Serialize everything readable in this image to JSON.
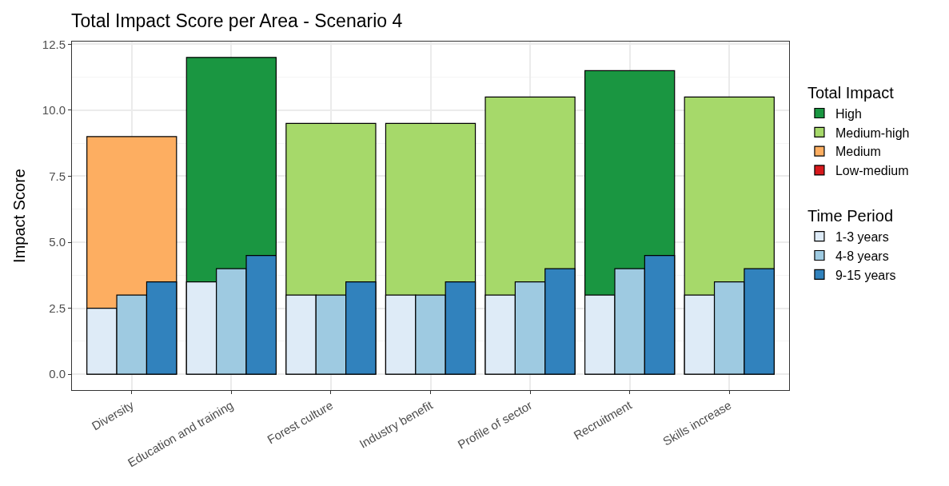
{
  "chart_data": {
    "type": "bar",
    "title": "Total Impact Score per Area - Scenario 4",
    "ylabel": "Impact Score",
    "legend_title": [
      "Total Impact",
      "Time Period"
    ],
    "categories": [
      "Diversity",
      "Education and training",
      "Forest culture",
      "Industry benefit",
      "Profile of sector",
      "Recruitment",
      "Skills increase"
    ],
    "series": [
      {
        "name": "High",
        "color": "#1a9641",
        "values": [
          null,
          12,
          null,
          null,
          null,
          11.5,
          null
        ]
      },
      {
        "name": "Medium-high",
        "color": "#a6d96a",
        "values": [
          null,
          null,
          9.5,
          9.5,
          10.5,
          null,
          10.5
        ]
      },
      {
        "name": "Medium",
        "color": "#fdae61",
        "values": [
          9,
          null,
          null,
          null,
          null,
          null,
          null
        ]
      },
      {
        "name": "Low-medium",
        "color": "#d7191c",
        "values": [
          null,
          null,
          null,
          null,
          null,
          null,
          null
        ]
      },
      {
        "name": "1-3 years",
        "color": "#deebf7",
        "values": [
          2.5,
          3.5,
          3,
          3,
          3,
          3,
          3
        ]
      },
      {
        "name": "4-8 years",
        "color": "#9ecae1",
        "values": [
          3,
          4,
          3,
          3,
          3.5,
          4,
          3.5
        ]
      },
      {
        "name": "9-15 years",
        "color": "#3182bd",
        "values": [
          3.5,
          4.5,
          3.5,
          3.5,
          4,
          4.5,
          4
        ]
      }
    ],
    "ylim": [
      -0.6,
      12.6
    ],
    "yticks": [
      {
        "value": 0,
        "label": "0.0"
      },
      {
        "value": 2.5,
        "label": "2.5"
      },
      {
        "value": 5,
        "label": "5.0"
      },
      {
        "value": 7.5,
        "label": "7.5"
      },
      {
        "value": 10,
        "label": "10.0"
      },
      {
        "value": 12.5,
        "label": "12.5"
      }
    ],
    "grid": true,
    "legend": "right"
  }
}
